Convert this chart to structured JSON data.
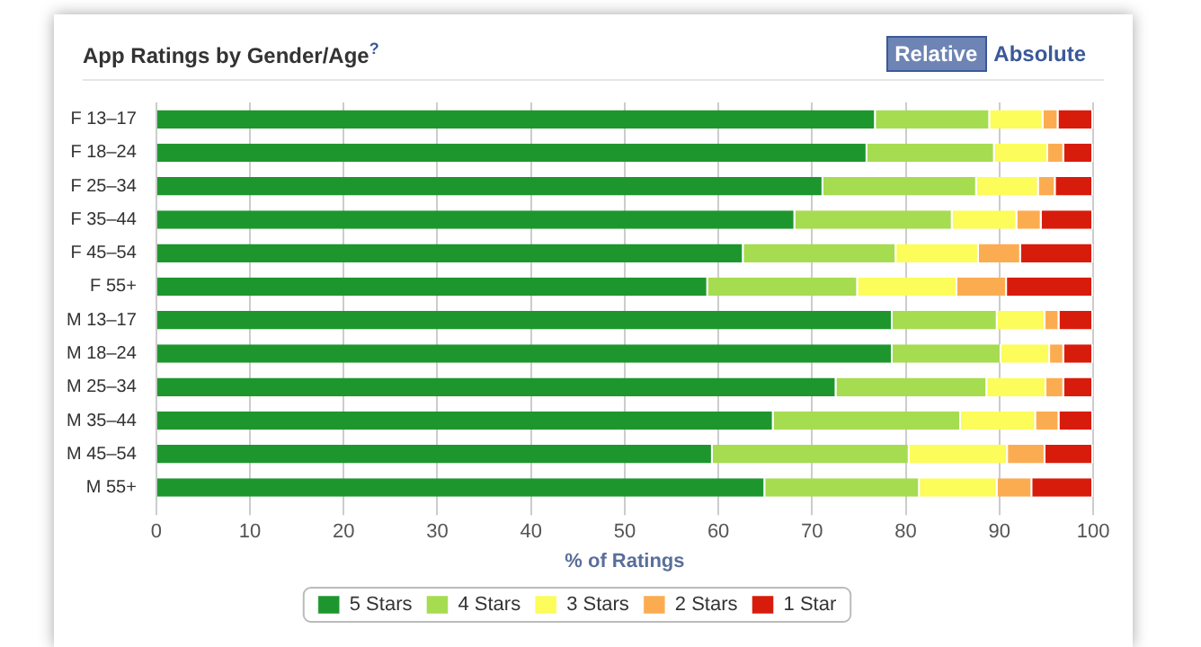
{
  "chart_data": {
    "type": "bar",
    "orientation": "horizontal",
    "stacked": true,
    "title": "App Ratings by Gender/Age$^{?}$",
    "xlabel": "% of Ratings",
    "annotations": [
      "Relative",
      "Absolute"
    ],
    "categories": [
      "F 13–17",
      "F 18–24",
      "F 25–34",
      "F 35–44",
      "F 45–54",
      "F 55+",
      "M 13–17",
      "M 18–24",
      "M 25–34",
      "M 35–44",
      "M 45–54",
      "M 55+"
    ],
    "series": [
      {
        "name": "5 Stars",
        "color": "#1e962e",
        "values": [
          76.8,
          75.9,
          71.2,
          68.2,
          62.7,
          58.9,
          78.6,
          78.6,
          72.6,
          65.9,
          59.4,
          65.0
        ]
      },
      {
        "name": "4 Stars",
        "color": "#a6dc50",
        "values": [
          12.2,
          13.6,
          16.4,
          16.8,
          16.3,
          16.0,
          11.2,
          11.6,
          16.1,
          20.0,
          21.0,
          16.5
        ]
      },
      {
        "name": "3 Stars",
        "color": "#fcfc5a",
        "values": [
          5.7,
          5.7,
          6.6,
          6.9,
          8.8,
          10.6,
          5.1,
          5.2,
          6.3,
          8.0,
          10.5,
          8.3
        ]
      },
      {
        "name": "2 Stars",
        "color": "#fcac50",
        "values": [
          1.6,
          1.7,
          1.8,
          2.6,
          4.5,
          5.3,
          1.5,
          1.5,
          1.9,
          2.5,
          4.0,
          3.7
        ]
      },
      {
        "name": "1 Star",
        "color": "#d81c0c",
        "values": [
          3.7,
          3.1,
          4.0,
          5.5,
          7.7,
          9.2,
          3.6,
          3.1,
          3.1,
          3.6,
          5.1,
          6.5
        ]
      }
    ],
    "xlim": [
      0,
      100
    ],
    "xticks": [
      0,
      10,
      20,
      30,
      40,
      50,
      60,
      70,
      80,
      90,
      100
    ],
    "grid": "x",
    "legend": "bottom"
  }
}
